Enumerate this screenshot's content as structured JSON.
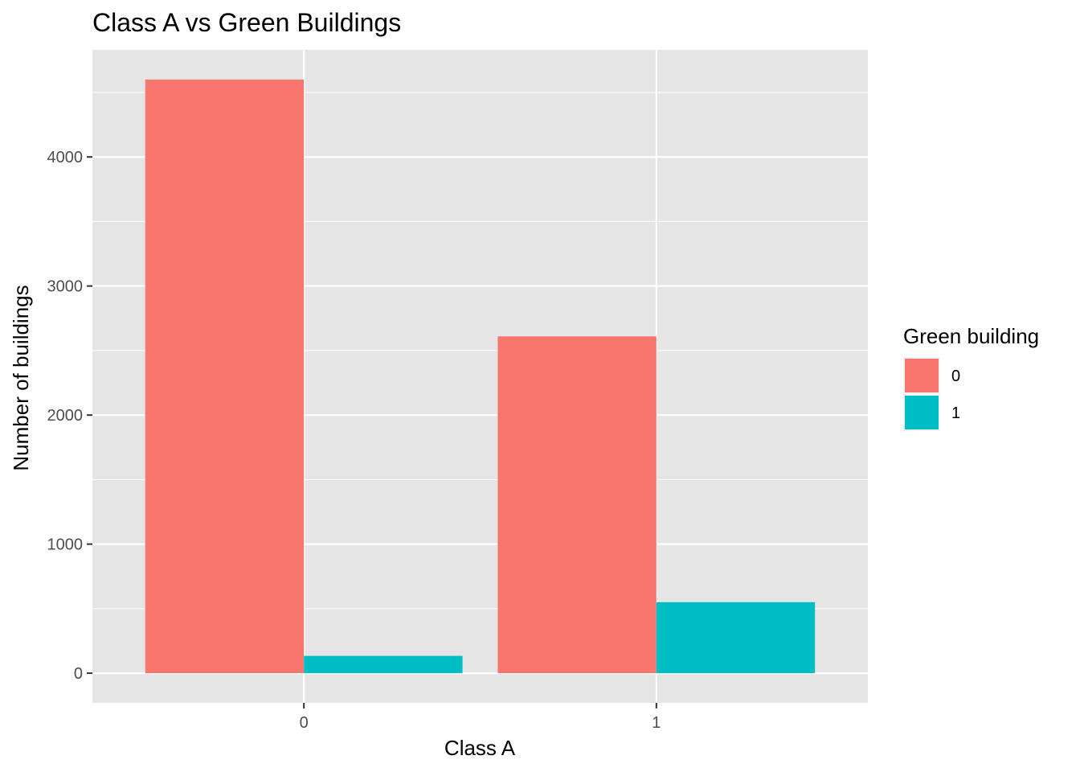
{
  "chart_data": {
    "type": "bar",
    "title": "Class A vs Green Buildings",
    "xlabel": "Class A",
    "ylabel": "Number of buildings",
    "categories": [
      "0",
      "1"
    ],
    "series": [
      {
        "name": "0",
        "values": [
          4600,
          2610
        ],
        "color": "#F8766D"
      },
      {
        "name": "1",
        "values": [
          134,
          550
        ],
        "color": "#00BFC4"
      }
    ],
    "ylim": [
      -230,
      4830
    ],
    "yticks": [
      0,
      1000,
      2000,
      3000,
      4000
    ],
    "grid": true,
    "legend": {
      "title": "Green building",
      "position": "right"
    },
    "colors": {
      "panel_background": "#EBEBEB",
      "grid": "#FFFFFF",
      "bar_0": "#F8766D",
      "bar_1": "#00BFC4"
    }
  }
}
